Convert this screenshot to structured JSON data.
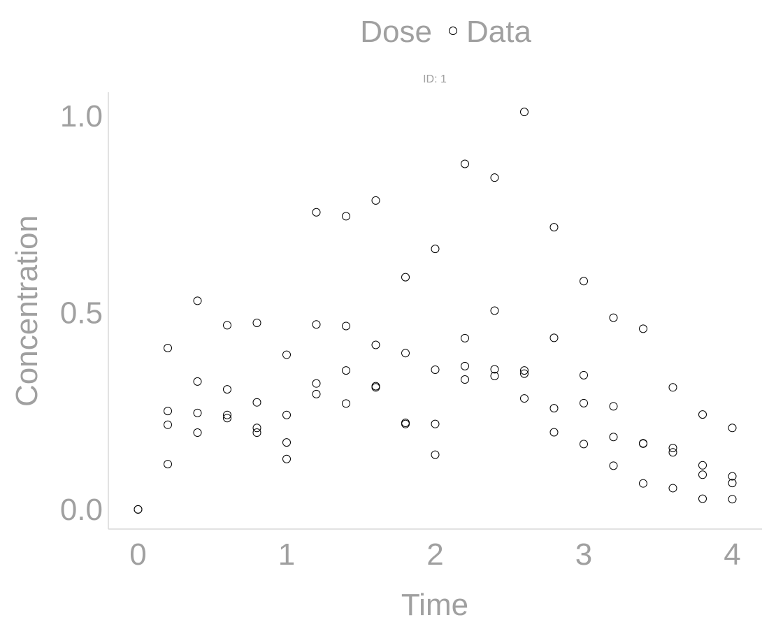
{
  "chart_data": {
    "type": "scatter",
    "legend": {
      "title": "Dose",
      "entries": [
        {
          "label": "Data",
          "marker": "open-circle"
        }
      ],
      "placement": "top"
    },
    "panel_strip": "ID: 1",
    "xlabel": "Time",
    "ylabel": "Concentration",
    "xlim": [
      -0.2,
      4.2
    ],
    "ylim": [
      -0.05,
      1.06
    ],
    "xticks": [
      0,
      1,
      2,
      3,
      4
    ],
    "xtick_labels": [
      "0",
      "1",
      "2",
      "3",
      "4"
    ],
    "yticks": [
      0.0,
      0.5,
      1.0
    ],
    "ytick_labels": [
      "0.0",
      "0.5",
      "1.0"
    ],
    "grid": false,
    "colors": {
      "text": "#a0a0a0",
      "axis": "#d9d9d9",
      "marker": "#000000"
    },
    "series": [
      {
        "marker": "open-circle",
        "points": [
          [
            0.0,
            0.0
          ],
          [
            0.0,
            0.0
          ],
          [
            0.2,
            0.41
          ],
          [
            0.2,
            0.25
          ],
          [
            0.2,
            0.215
          ],
          [
            0.2,
            0.115
          ],
          [
            0.4,
            0.53
          ],
          [
            0.4,
            0.325
          ],
          [
            0.4,
            0.245
          ],
          [
            0.4,
            0.195
          ],
          [
            0.6,
            0.468
          ],
          [
            0.6,
            0.305
          ],
          [
            0.6,
            0.24
          ],
          [
            0.6,
            0.232
          ],
          [
            0.8,
            0.474
          ],
          [
            0.8,
            0.272
          ],
          [
            0.8,
            0.207
          ],
          [
            0.8,
            0.195
          ],
          [
            1.0,
            0.393
          ],
          [
            1.0,
            0.24
          ],
          [
            1.0,
            0.17
          ],
          [
            1.0,
            0.128
          ],
          [
            1.2,
            0.755
          ],
          [
            1.2,
            0.47
          ],
          [
            1.2,
            0.32
          ],
          [
            1.2,
            0.293
          ],
          [
            1.4,
            0.745
          ],
          [
            1.4,
            0.466
          ],
          [
            1.4,
            0.353
          ],
          [
            1.4,
            0.269
          ],
          [
            1.6,
            0.785
          ],
          [
            1.6,
            0.418
          ],
          [
            1.6,
            0.313
          ],
          [
            1.6,
            0.31
          ],
          [
            1.8,
            0.59
          ],
          [
            1.8,
            0.397
          ],
          [
            1.8,
            0.22
          ],
          [
            1.8,
            0.217
          ],
          [
            2.0,
            0.662
          ],
          [
            2.0,
            0.355
          ],
          [
            2.0,
            0.217
          ],
          [
            2.0,
            0.139
          ],
          [
            2.2,
            0.878
          ],
          [
            2.2,
            0.435
          ],
          [
            2.2,
            0.364
          ],
          [
            2.2,
            0.33
          ],
          [
            2.4,
            0.843
          ],
          [
            2.4,
            0.505
          ],
          [
            2.4,
            0.356
          ],
          [
            2.4,
            0.339
          ],
          [
            2.6,
            1.01
          ],
          [
            2.6,
            0.353
          ],
          [
            2.6,
            0.345
          ],
          [
            2.6,
            0.282
          ],
          [
            2.8,
            0.717
          ],
          [
            2.8,
            0.436
          ],
          [
            2.8,
            0.257
          ],
          [
            2.8,
            0.196
          ],
          [
            3.0,
            0.58
          ],
          [
            3.0,
            0.341
          ],
          [
            3.0,
            0.27
          ],
          [
            3.0,
            0.166
          ],
          [
            3.2,
            0.487
          ],
          [
            3.2,
            0.262
          ],
          [
            3.2,
            0.184
          ],
          [
            3.2,
            0.111
          ],
          [
            3.4,
            0.459
          ],
          [
            3.4,
            0.168
          ],
          [
            3.4,
            0.167
          ],
          [
            3.4,
            0.066
          ],
          [
            3.6,
            0.31
          ],
          [
            3.6,
            0.156
          ],
          [
            3.6,
            0.145
          ],
          [
            3.6,
            0.054
          ],
          [
            3.8,
            0.241
          ],
          [
            3.8,
            0.112
          ],
          [
            3.8,
            0.088
          ],
          [
            3.8,
            0.027
          ],
          [
            4.0,
            0.207
          ],
          [
            4.0,
            0.084
          ],
          [
            4.0,
            0.067
          ],
          [
            4.0,
            0.026
          ]
        ]
      }
    ]
  }
}
